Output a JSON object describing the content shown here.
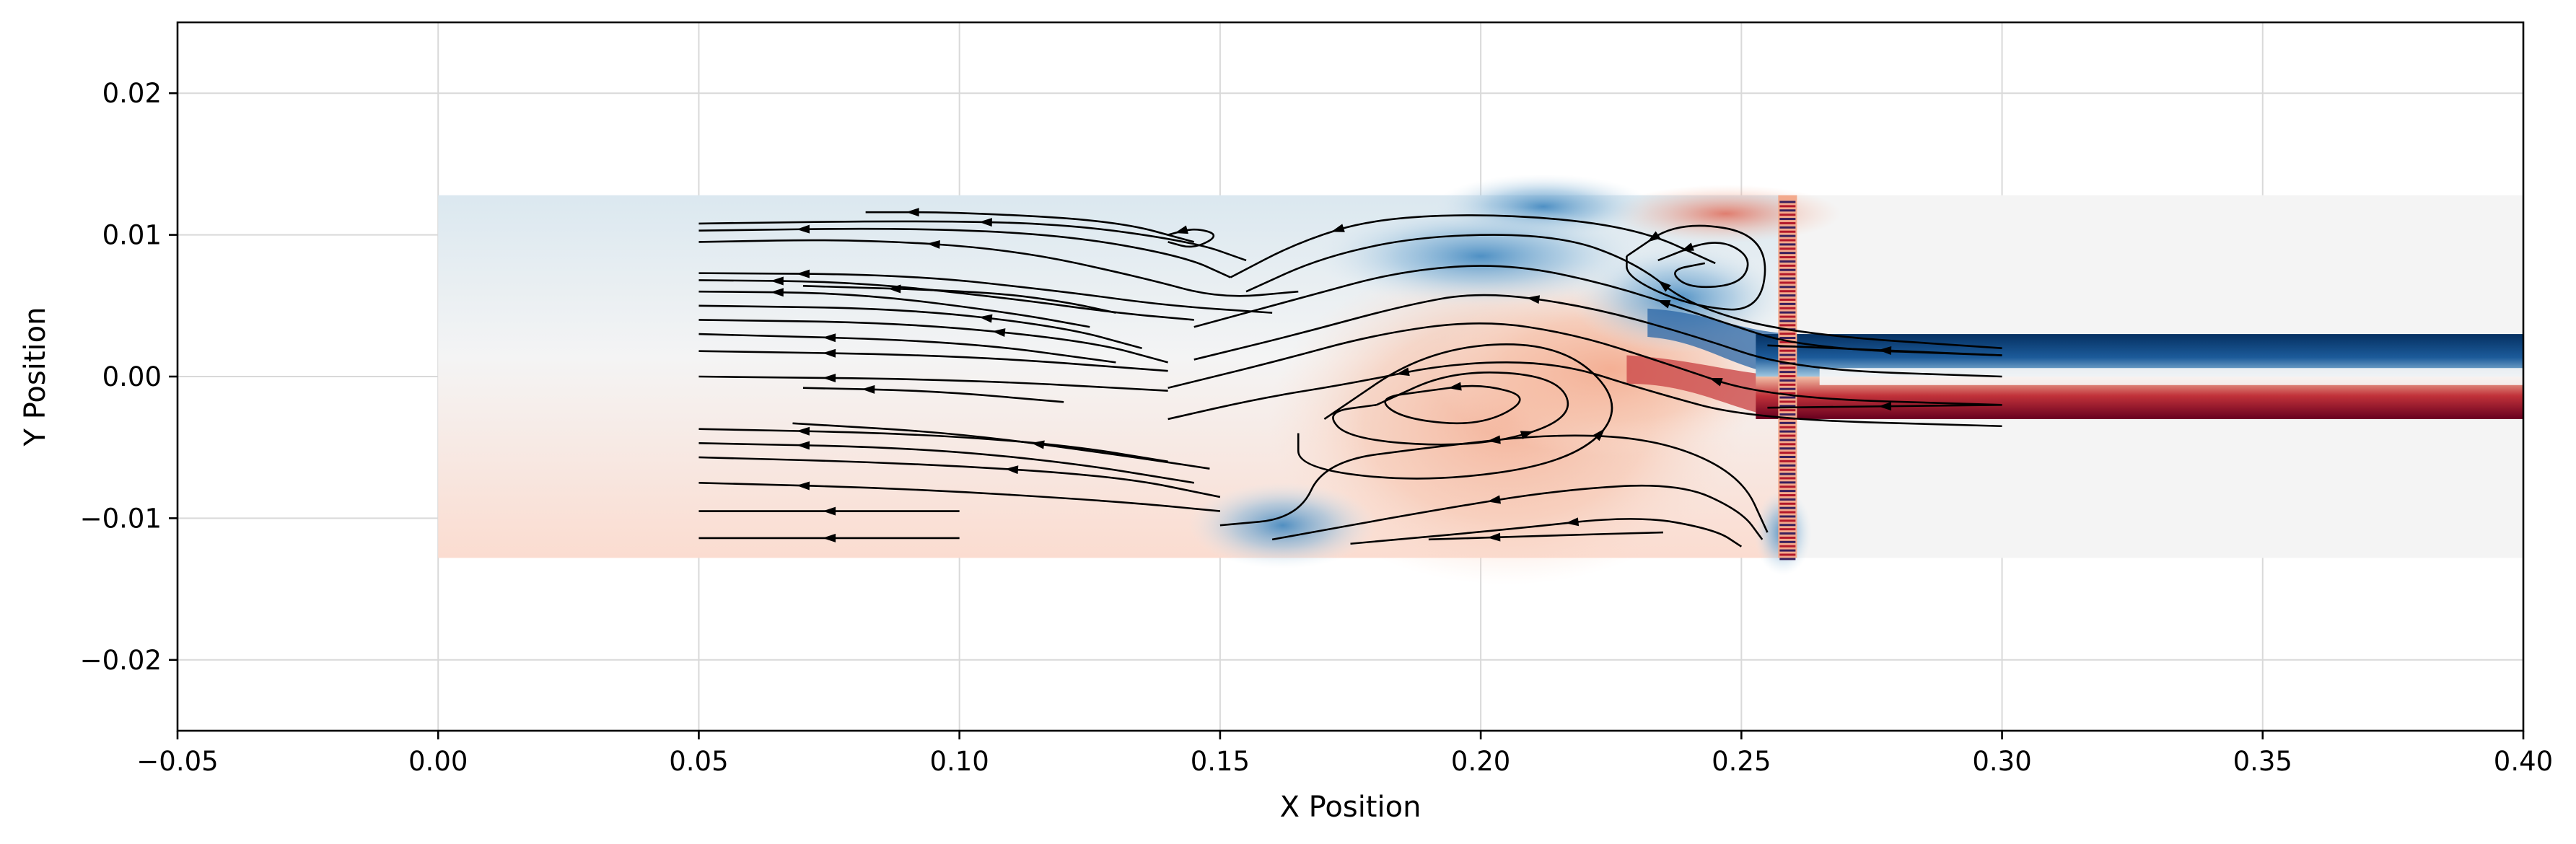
{
  "chart_data": {
    "type": "heatmap",
    "title": "",
    "xlabel": "X Position",
    "ylabel": "Y Position",
    "xlim": [
      -0.05,
      0.4
    ],
    "ylim": [
      -0.025,
      0.025
    ],
    "x_ticks": [
      -0.05,
      0.0,
      0.05,
      0.1,
      0.15,
      0.2,
      0.25,
      0.3,
      0.35,
      0.4
    ],
    "x_tick_labels": [
      "−0.05",
      "0.00",
      "0.05",
      "0.10",
      "0.15",
      "0.20",
      "0.25",
      "0.30",
      "0.35",
      "0.40"
    ],
    "y_ticks": [
      -0.02,
      -0.01,
      0.0,
      0.01,
      0.02
    ],
    "y_tick_labels": [
      "−0.02",
      "−0.01",
      "0.00",
      "0.01",
      "0.02"
    ],
    "grid": true,
    "colormap": "RdBu_r",
    "colors": {
      "positive": "#67001f",
      "negative": "#053061",
      "neutral": "#f7f7f7",
      "background": "#f4f4f4"
    },
    "field_regions": {
      "chamber": {
        "x": [
          0.0,
          0.26
        ],
        "y": [
          -0.0128,
          0.0128
        ]
      },
      "outlet_channel": {
        "x": [
          0.26,
          0.4
        ],
        "y": [
          -0.0128,
          0.0128
        ]
      },
      "outlet_jet": {
        "x": [
          0.25,
          0.4
        ],
        "y": [
          -0.003,
          0.003
        ]
      },
      "baffle_x": 0.259
    },
    "features": [
      {
        "kind": "upper-vortex",
        "center": [
          0.241,
          0.0075
        ]
      },
      {
        "kind": "lower-recirculation-vortex",
        "center": [
          0.195,
          -0.002
        ]
      },
      {
        "kind": "small-vortex",
        "center": [
          0.146,
          0.0098
        ]
      },
      {
        "kind": "outlet-shear-layer",
        "y": [
          0.003,
          -0.003
        ]
      }
    ],
    "streamlines": [
      {
        "points": [
          [
            0.05,
            0.0108
          ],
          [
            0.09,
            0.011
          ],
          [
            0.12,
            0.0108
          ],
          [
            0.145,
            0.0095
          ],
          [
            0.155,
            0.0082
          ]
        ],
        "arrow_at": 2
      },
      {
        "points": [
          [
            0.05,
            0.0103
          ],
          [
            0.09,
            0.0105
          ],
          [
            0.12,
            0.01
          ],
          [
            0.143,
            0.0085
          ],
          [
            0.152,
            0.007
          ]
        ],
        "arrow_at": 1
      },
      {
        "points": [
          [
            0.05,
            0.0095
          ],
          [
            0.08,
            0.0097
          ],
          [
            0.11,
            0.009
          ],
          [
            0.135,
            0.007
          ],
          [
            0.15,
            0.0055
          ],
          [
            0.165,
            0.006
          ]
        ],
        "arrow_at": 2
      },
      {
        "points": [
          [
            0.05,
            0.0073
          ],
          [
            0.09,
            0.0072
          ],
          [
            0.12,
            0.006
          ],
          [
            0.14,
            0.005
          ],
          [
            0.16,
            0.0045
          ]
        ],
        "arrow_at": 1
      },
      {
        "points": [
          [
            0.05,
            0.0068
          ],
          [
            0.08,
            0.0067
          ],
          [
            0.11,
            0.0055
          ],
          [
            0.13,
            0.0045
          ],
          [
            0.145,
            0.004
          ]
        ],
        "arrow_at": 1
      },
      {
        "points": [
          [
            0.05,
            0.006
          ],
          [
            0.08,
            0.0059
          ],
          [
            0.11,
            0.0045
          ],
          [
            0.125,
            0.0035
          ]
        ],
        "arrow_at": 1
      },
      {
        "points": [
          [
            0.05,
            0.005
          ],
          [
            0.09,
            0.0048
          ],
          [
            0.12,
            0.0035
          ],
          [
            0.135,
            0.002
          ]
        ],
        "arrow_at": 2
      },
      {
        "points": [
          [
            0.05,
            0.004
          ],
          [
            0.09,
            0.0038
          ],
          [
            0.125,
            0.0025
          ],
          [
            0.14,
            0.001
          ]
        ],
        "arrow_at": 2
      },
      {
        "points": [
          [
            0.05,
            0.003
          ],
          [
            0.1,
            0.0025
          ],
          [
            0.13,
            0.001
          ]
        ],
        "arrow_at": 1
      },
      {
        "points": [
          [
            0.05,
            0.0018
          ],
          [
            0.1,
            0.0015
          ],
          [
            0.14,
            0.0004
          ]
        ],
        "arrow_at": 1
      },
      {
        "points": [
          [
            0.05,
            0.0
          ],
          [
            0.1,
            -0.0002
          ],
          [
            0.14,
            -0.001
          ]
        ],
        "arrow_at": 1
      },
      {
        "points": [
          [
            0.07,
            -0.0008
          ],
          [
            0.095,
            -0.001
          ],
          [
            0.12,
            -0.0018
          ]
        ],
        "arrow_at": 1
      },
      {
        "points": [
          [
            0.05,
            -0.0037
          ],
          [
            0.09,
            -0.004
          ],
          [
            0.12,
            -0.0048
          ],
          [
            0.14,
            -0.006
          ]
        ],
        "arrow_at": 1
      },
      {
        "points": [
          [
            0.05,
            -0.0047
          ],
          [
            0.09,
            -0.005
          ],
          [
            0.12,
            -0.006
          ],
          [
            0.145,
            -0.0075
          ]
        ],
        "arrow_at": 1
      },
      {
        "points": [
          [
            0.05,
            -0.0057
          ],
          [
            0.09,
            -0.0061
          ],
          [
            0.13,
            -0.007
          ],
          [
            0.15,
            -0.0085
          ]
        ],
        "arrow_at": 2
      },
      {
        "points": [
          [
            0.05,
            -0.0075
          ],
          [
            0.09,
            -0.0079
          ],
          [
            0.13,
            -0.0088
          ],
          [
            0.15,
            -0.0095
          ]
        ],
        "arrow_at": 1
      },
      {
        "points": [
          [
            0.05,
            -0.0095
          ],
          [
            0.1,
            -0.0095
          ]
        ],
        "arrow_at": 1
      },
      {
        "points": [
          [
            0.05,
            -0.0114
          ],
          [
            0.1,
            -0.0114
          ]
        ],
        "arrow_at": 1
      },
      {
        "points": [
          [
            0.082,
            0.0116
          ],
          [
            0.1,
            0.0116
          ],
          [
            0.13,
            0.011
          ],
          [
            0.145,
            0.0095
          ]
        ],
        "arrow_at": 1
      },
      {
        "points": [
          [
            0.07,
            0.0064
          ],
          [
            0.105,
            0.006
          ],
          [
            0.12,
            0.0053
          ],
          [
            0.13,
            0.0045
          ]
        ],
        "arrow_at": 1
      },
      {
        "points": [
          [
            0.068,
            -0.0033
          ],
          [
            0.1,
            -0.004
          ],
          [
            0.13,
            -0.0055
          ],
          [
            0.148,
            -0.0065
          ]
        ],
        "arrow_at": 2
      },
      {
        "points": [
          [
            0.152,
            0.007
          ],
          [
            0.165,
            0.0095
          ],
          [
            0.18,
            0.0112
          ],
          [
            0.205,
            0.0115
          ],
          [
            0.23,
            0.0105
          ],
          [
            0.245,
            0.008
          ]
        ],
        "arrow_at": 2
      },
      {
        "points": [
          [
            0.155,
            0.006
          ],
          [
            0.17,
            0.0085
          ],
          [
            0.19,
            0.01
          ],
          [
            0.215,
            0.01
          ],
          [
            0.23,
            0.008
          ],
          [
            0.24,
            0.005
          ],
          [
            0.26,
            0.003
          ],
          [
            0.3,
            0.002
          ]
        ],
        "arrow_at": 5
      },
      {
        "points": [
          [
            0.145,
            0.0035
          ],
          [
            0.165,
            0.0055
          ],
          [
            0.185,
            0.0075
          ],
          [
            0.205,
            0.008
          ],
          [
            0.225,
            0.0065
          ],
          [
            0.245,
            0.004
          ],
          [
            0.262,
            0.002
          ],
          [
            0.3,
            0.0015
          ]
        ],
        "arrow_at": 5
      },
      {
        "points": [
          [
            0.145,
            0.0012
          ],
          [
            0.165,
            0.003
          ],
          [
            0.185,
            0.005
          ],
          [
            0.2,
            0.006
          ],
          [
            0.22,
            0.005
          ],
          [
            0.24,
            0.003
          ],
          [
            0.26,
            0.0005
          ],
          [
            0.3,
            0.0
          ]
        ],
        "arrow_at": 4
      },
      {
        "points": [
          [
            0.14,
            -0.0008
          ],
          [
            0.16,
            0.001
          ],
          [
            0.18,
            0.003
          ],
          [
            0.2,
            0.004
          ],
          [
            0.218,
            0.003
          ],
          [
            0.235,
            0.001
          ],
          [
            0.255,
            -0.0015
          ],
          [
            0.3,
            -0.002
          ]
        ],
        "arrow_at": 6
      },
      {
        "points": [
          [
            0.14,
            -0.003
          ],
          [
            0.158,
            -0.0015
          ],
          [
            0.175,
            -0.0005
          ],
          [
            0.195,
            0.001
          ],
          [
            0.215,
            0.001
          ],
          [
            0.232,
            -0.001
          ],
          [
            0.252,
            -0.003
          ],
          [
            0.3,
            -0.0035
          ]
        ],
        "arrow_at": 3
      },
      {
        "points": [
          [
            0.19,
            -0.001
          ],
          [
            0.2,
            -0.0005
          ],
          [
            0.21,
            -0.0015
          ],
          [
            0.2,
            -0.0035
          ],
          [
            0.185,
            -0.003
          ],
          [
            0.18,
            -0.0015
          ],
          [
            0.19,
            -0.001
          ]
        ],
        "arrow_at": 1
      },
      {
        "points": [
          [
            0.18,
            -0.002
          ],
          [
            0.195,
            0.0005
          ],
          [
            0.215,
            0.0
          ],
          [
            0.218,
            -0.003
          ],
          [
            0.2,
            -0.005
          ],
          [
            0.175,
            -0.0045
          ],
          [
            0.17,
            -0.0025
          ],
          [
            0.18,
            -0.002
          ]
        ],
        "arrow_at": 4
      },
      {
        "points": [
          [
            0.17,
            -0.003
          ],
          [
            0.19,
            0.002
          ],
          [
            0.215,
            0.0025
          ],
          [
            0.228,
            -0.002
          ],
          [
            0.218,
            -0.006
          ],
          [
            0.19,
            -0.0075
          ],
          [
            0.165,
            -0.0065
          ],
          [
            0.165,
            -0.004
          ]
        ],
        "arrow_at": 4
      },
      {
        "points": [
          [
            0.15,
            -0.0105
          ],
          [
            0.165,
            -0.01
          ],
          [
            0.17,
            -0.006
          ],
          [
            0.19,
            -0.005
          ],
          [
            0.215,
            -0.004
          ],
          [
            0.235,
            -0.0045
          ],
          [
            0.25,
            -0.007
          ],
          [
            0.255,
            -0.011
          ]
        ],
        "arrow_at": 4
      },
      {
        "points": [
          [
            0.16,
            -0.0115
          ],
          [
            0.19,
            -0.0095
          ],
          [
            0.215,
            -0.008
          ],
          [
            0.238,
            -0.0075
          ],
          [
            0.25,
            -0.0095
          ],
          [
            0.254,
            -0.0115
          ]
        ],
        "arrow_at": 2
      },
      {
        "points": [
          [
            0.175,
            -0.0118
          ],
          [
            0.205,
            -0.0108
          ],
          [
            0.23,
            -0.0098
          ],
          [
            0.245,
            -0.0108
          ],
          [
            0.25,
            -0.012
          ]
        ],
        "arrow_at": 2
      },
      {
        "points": [
          [
            0.19,
            -0.0115
          ],
          [
            0.215,
            -0.0112
          ],
          [
            0.235,
            -0.011
          ]
        ],
        "arrow_at": 1
      },
      {
        "points": [
          [
            0.234,
            0.0082
          ],
          [
            0.245,
            0.0098
          ],
          [
            0.252,
            0.0085
          ],
          [
            0.25,
            0.0065
          ],
          [
            0.24,
            0.0062
          ],
          [
            0.236,
            0.0075
          ],
          [
            0.243,
            0.008
          ]
        ],
        "arrow_at": 1
      },
      {
        "points": [
          [
            0.228,
            0.0085
          ],
          [
            0.238,
            0.011
          ],
          [
            0.255,
            0.01
          ],
          [
            0.254,
            0.0045
          ],
          [
            0.24,
            0.005
          ],
          [
            0.228,
            0.007
          ],
          [
            0.228,
            0.0085
          ]
        ],
        "arrow_at": 1
      },
      {
        "points": [
          [
            0.14,
            0.01
          ],
          [
            0.145,
            0.0105
          ],
          [
            0.15,
            0.01
          ],
          [
            0.145,
            0.009
          ],
          [
            0.14,
            0.0095
          ]
        ],
        "arrow_at": 1
      },
      {
        "points": [
          [
            0.255,
            0.0022
          ],
          [
            0.3,
            0.0015
          ]
        ],
        "arrow_at": 1
      },
      {
        "points": [
          [
            0.255,
            -0.0022
          ],
          [
            0.3,
            -0.002
          ]
        ],
        "arrow_at": 1
      }
    ]
  }
}
